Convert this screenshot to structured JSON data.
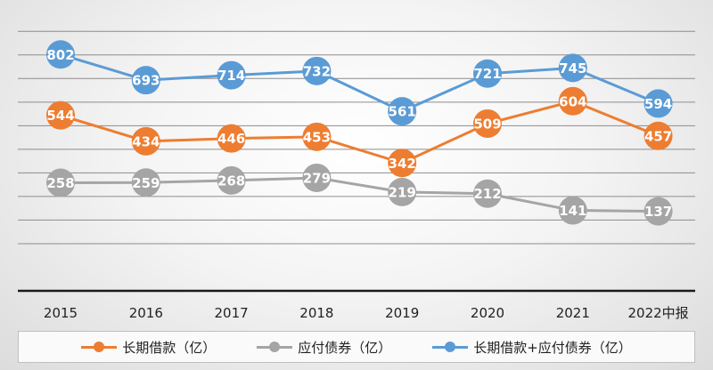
{
  "chart_data": {
    "type": "line",
    "categories": [
      "2015",
      "2016",
      "2017",
      "2018",
      "2019",
      "2020",
      "2021",
      "2022中报"
    ],
    "ylim": [
      -200,
      950
    ],
    "grid": true,
    "legend_position": "bottom",
    "series": [
      {
        "name": "长期借款（亿）",
        "color": "#ED7D31",
        "values": [
          544,
          434,
          446,
          453,
          342,
          509,
          604,
          457
        ]
      },
      {
        "name": "应付债券（亿）",
        "color": "#A5A5A5",
        "values": [
          258,
          259,
          268,
          279,
          219,
          212,
          141,
          137
        ]
      },
      {
        "name": "长期借款+应付债券（亿）",
        "color": "#5B9BD5",
        "values": [
          802,
          693,
          714,
          732,
          561,
          721,
          745,
          594
        ]
      }
    ]
  }
}
